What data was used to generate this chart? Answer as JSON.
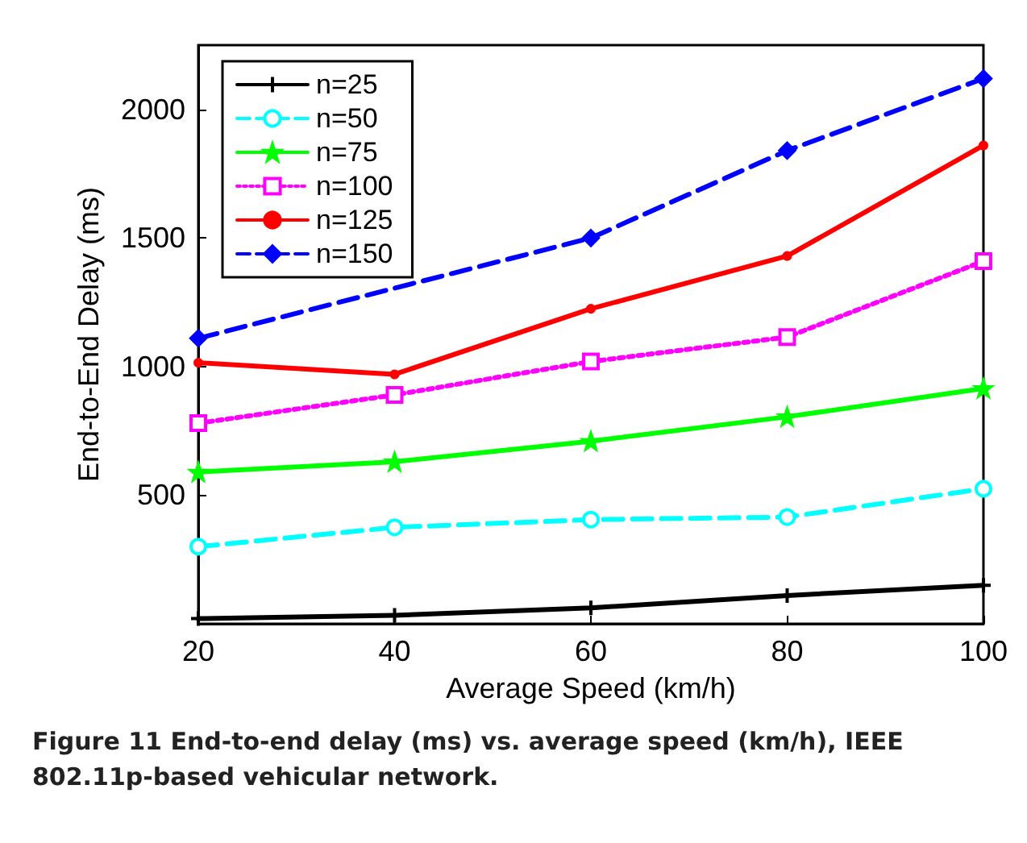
{
  "chart_data": {
    "type": "line",
    "xlabel": "Average Speed (km/h)",
    "ylabel": "End-to-End Delay (ms)",
    "x": [
      20,
      40,
      60,
      80,
      100
    ],
    "xlim": [
      20,
      100
    ],
    "xticks": [
      20,
      40,
      60,
      80,
      100
    ],
    "ylim": [
      0,
      2250
    ],
    "yticks": [
      500,
      1000,
      1500,
      2000
    ],
    "grid": false,
    "legend": "top left",
    "series": [
      {
        "name": "n=25",
        "color": "#000000",
        "marker": "cross",
        "line_style": "solid",
        "values": [
          20,
          33,
          62,
          110,
          150
        ]
      },
      {
        "name": "n=50",
        "color": "#00ffff",
        "marker": "circle",
        "line_style": "dashed",
        "values": [
          300,
          375,
          405,
          415,
          525
        ]
      },
      {
        "name": "n=75",
        "color": "#00ff00",
        "marker": "star",
        "line_style": "solid",
        "values": [
          590,
          630,
          710,
          805,
          915
        ]
      },
      {
        "name": "n=100",
        "color": "#ff00ff",
        "marker": "square",
        "line_style": "dotted",
        "values": [
          780,
          890,
          1020,
          1115,
          1410
        ]
      },
      {
        "name": "n=125",
        "color": "#ff0000",
        "marker": "circle",
        "line_style": "solid",
        "values": [
          1015,
          970,
          1225,
          1430,
          1860
        ]
      },
      {
        "name": "n=150",
        "color": "#0000ff",
        "marker": "diamond",
        "line_style": "dashed",
        "values": [
          1110,
          null,
          1500,
          1840,
          2120
        ]
      }
    ],
    "annotations": [
      "Figure 11 End-to-end delay (ms) vs. average speed (km/h), IEEE 802.11p-based vehicular network."
    ]
  }
}
